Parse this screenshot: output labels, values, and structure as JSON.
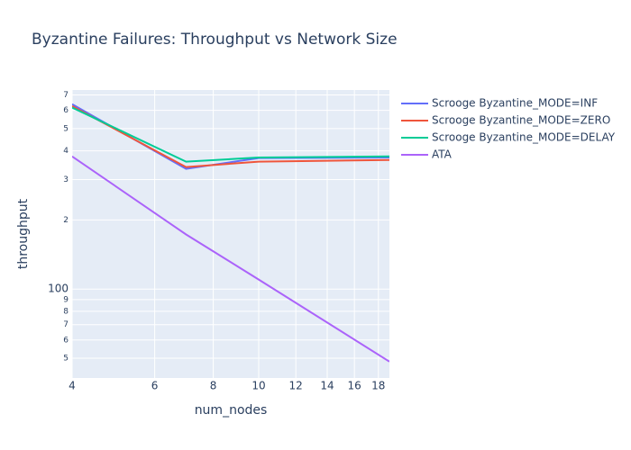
{
  "chart_data": {
    "type": "line",
    "title": "Byzantine Failures: Throughput vs Network Size",
    "x_label": "num_nodes",
    "y_label": "throughput",
    "x": [
      4,
      7,
      10,
      19
    ],
    "series": [
      {
        "name": "Scrooge Byzantine_MODE=INF",
        "color": "#636efa",
        "values": [
          638,
          334,
          372,
          374
        ]
      },
      {
        "name": "Scrooge Byzantine_MODE=ZERO",
        "color": "#ef553b",
        "values": [
          626,
          340,
          359,
          365
        ]
      },
      {
        "name": "Scrooge Byzantine_MODE=DELAY",
        "color": "#00cc96",
        "values": [
          617,
          359,
          374,
          378
        ]
      },
      {
        "name": "ATA",
        "color": "#ab63fa",
        "values": [
          378,
          173,
          110,
          48.3
        ]
      }
    ],
    "xlim": [
      4,
      19
    ],
    "xticks": [
      4,
      6,
      8,
      10,
      12,
      14,
      16,
      18
    ],
    "ylim": [
      41,
      736
    ],
    "yticks": [
      {
        "value": 50,
        "label": "5"
      },
      {
        "value": 60,
        "label": "6"
      },
      {
        "value": 70,
        "label": "7"
      },
      {
        "value": 80,
        "label": "8"
      },
      {
        "value": 90,
        "label": "9"
      },
      100,
      {
        "value": 200,
        "label": "2"
      },
      {
        "value": 300,
        "label": "3"
      },
      {
        "value": 400,
        "label": "4"
      },
      {
        "value": 500,
        "label": "5"
      },
      {
        "value": 600,
        "label": "6"
      },
      {
        "value": 700,
        "label": "7"
      }
    ],
    "log_x": true,
    "log_y": true,
    "grid": true
  }
}
